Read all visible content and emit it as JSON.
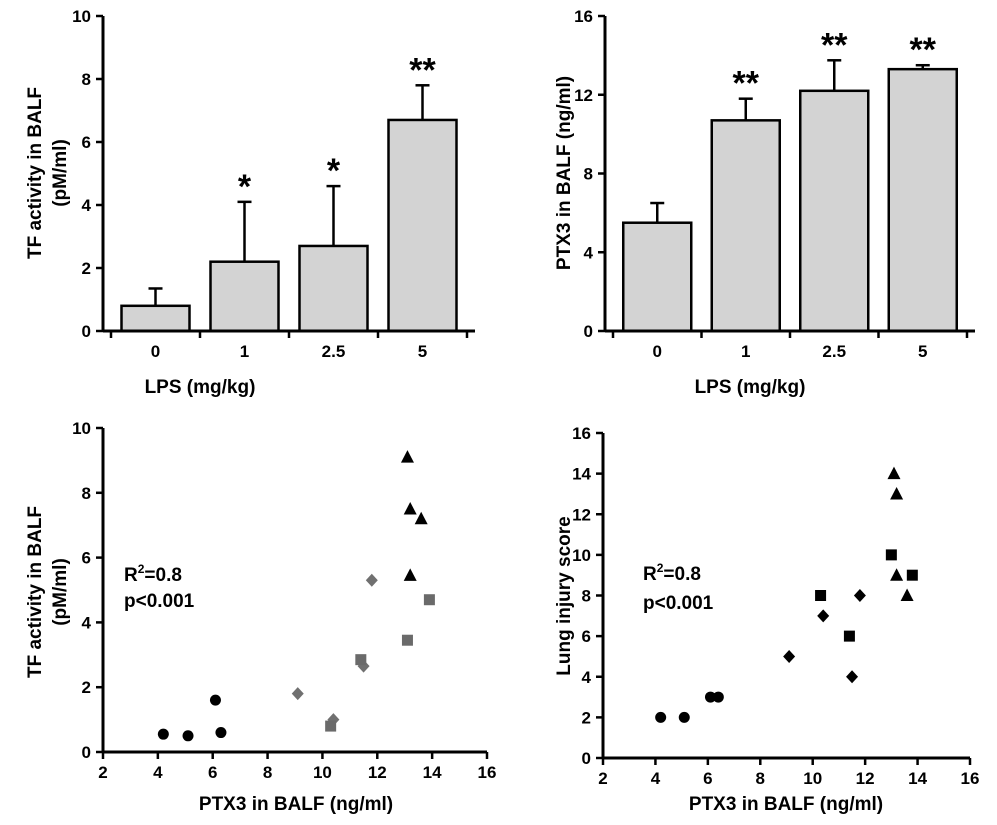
{
  "chart_data": [
    {
      "type": "bar",
      "categories": [
        "0",
        "1",
        "2.5",
        "5"
      ],
      "values": [
        0.8,
        2.2,
        2.7,
        6.7
      ],
      "errors": [
        0.55,
        1.9,
        1.9,
        1.1
      ],
      "significance": [
        "",
        "*",
        "*",
        "**"
      ],
      "xlabel": "LPS (mg/kg)",
      "ylabel": [
        "TF activity in BALF",
        "(pM/ml)"
      ],
      "ylim": [
        0,
        10
      ],
      "yticks": [
        "0",
        "2",
        "4",
        "6",
        "8",
        "10"
      ],
      "bar_color": "#d3d3d3"
    },
    {
      "type": "bar",
      "categories": [
        "0",
        "1",
        "2.5",
        "5"
      ],
      "values": [
        5.5,
        10.7,
        12.2,
        13.3
      ],
      "errors": [
        1.0,
        1.1,
        1.55,
        0.2
      ],
      "significance": [
        "",
        "**",
        "**",
        "**"
      ],
      "xlabel": "LPS (mg/kg)",
      "ylabel": [
        "PTX3 in BALF (ng/ml)"
      ],
      "ylim": [
        0,
        16
      ],
      "yticks": [
        "0",
        "4",
        "8",
        "12",
        "16"
      ],
      "bar_color": "#d3d3d3"
    },
    {
      "type": "scatter",
      "xlabel": "PTX3 in BALF (ng/ml)",
      "ylabel": [
        "TF activity in BALF",
        "(pM/ml)"
      ],
      "xlim": [
        2,
        16
      ],
      "ylim": [
        0,
        10
      ],
      "xticks": [
        "2",
        "4",
        "6",
        "8",
        "10",
        "12",
        "14",
        "16"
      ],
      "yticks": [
        "0",
        "2",
        "4",
        "6",
        "8",
        "10"
      ],
      "annotations": [
        "R",
        "2",
        "=0.8",
        "p<0.001"
      ],
      "series": [
        {
          "marker": "circle",
          "color": "#000000",
          "x": [
            4.2,
            5.1,
            6.1,
            6.3
          ],
          "y": [
            0.55,
            0.5,
            1.6,
            0.6
          ]
        },
        {
          "marker": "diamond",
          "color": "#707070",
          "x": [
            9.1,
            10.4,
            11.5,
            11.8
          ],
          "y": [
            1.8,
            1.0,
            2.65,
            5.3
          ]
        },
        {
          "marker": "square",
          "color": "#6a6a6a",
          "x": [
            10.3,
            11.4,
            13.1,
            13.9
          ],
          "y": [
            0.8,
            2.85,
            3.45,
            4.7
          ]
        },
        {
          "marker": "triangle",
          "color": "#000000",
          "x": [
            13.1,
            13.2,
            13.2,
            13.6
          ],
          "y": [
            9.1,
            7.5,
            5.45,
            7.2
          ]
        }
      ]
    },
    {
      "type": "scatter",
      "xlabel": "PTX3 in BALF (ng/ml)",
      "ylabel": [
        "Lung injury score"
      ],
      "xlim": [
        2,
        16
      ],
      "ylim": [
        0,
        16
      ],
      "xticks": [
        "2",
        "4",
        "6",
        "8",
        "10",
        "12",
        "14",
        "16"
      ],
      "yticks": [
        "0",
        "2",
        "4",
        "6",
        "8",
        "10",
        "12",
        "14",
        "16"
      ],
      "annotations": [
        "R",
        "2",
        "=0.8",
        "p<0.001"
      ],
      "series": [
        {
          "marker": "circle",
          "color": "#000000",
          "x": [
            4.2,
            5.1,
            6.1,
            6.4
          ],
          "y": [
            2,
            2,
            3,
            3
          ]
        },
        {
          "marker": "diamond",
          "color": "#000000",
          "x": [
            9.1,
            10.4,
            11.5,
            11.8
          ],
          "y": [
            5,
            7,
            4,
            8
          ]
        },
        {
          "marker": "square",
          "color": "#000000",
          "x": [
            10.3,
            11.4,
            13.0,
            13.8
          ],
          "y": [
            8,
            6,
            10,
            9
          ]
        },
        {
          "marker": "triangle",
          "color": "#000000",
          "x": [
            13.1,
            13.2,
            13.2,
            13.6
          ],
          "y": [
            14,
            13,
            9,
            8
          ]
        }
      ]
    }
  ]
}
